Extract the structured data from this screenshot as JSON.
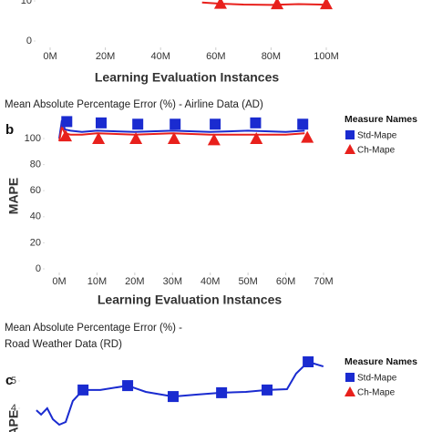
{
  "chart_data": [
    {
      "type": "line",
      "x_label": "Learning Evaluation Instances",
      "xlim": [
        0,
        100
      ],
      "xticks": [
        {
          "value": 0,
          "label": "0M"
        },
        {
          "value": 20,
          "label": "20M"
        },
        {
          "value": 40,
          "label": "40M"
        },
        {
          "value": 60,
          "label": "60M"
        },
        {
          "value": 80,
          "label": "80M"
        },
        {
          "value": 100,
          "label": "100M"
        }
      ],
      "ylim": [
        0,
        10
      ],
      "yticks": [
        0,
        10
      ],
      "series": [
        {
          "color": "#e8201c",
          "marker": "triangle",
          "x": [
            55,
            62,
            70,
            80,
            90,
            98,
            100
          ],
          "values": [
            9.6,
            9.3,
            9.1,
            9.0,
            9.2,
            9.1,
            9.0
          ],
          "marker_x": [
            61.7,
            82.2,
            100
          ],
          "marker_values": [
            9.4,
            9.3,
            9.3
          ]
        }
      ]
    },
    {
      "type": "line",
      "title": [
        "Mean Absolute Percentage Error (%)  - Airline Data (AD)"
      ],
      "panel": "b",
      "x_label": "Learning Evaluation Instances",
      "y_label": "MAPE",
      "legend_title": "Measure Names",
      "xlim": [
        0,
        70
      ],
      "xticks": [
        {
          "value": 0,
          "label": "0M"
        },
        {
          "value": 10,
          "label": "10M"
        },
        {
          "value": 20,
          "label": "20M"
        },
        {
          "value": 30,
          "label": "30M"
        },
        {
          "value": 40,
          "label": "40M"
        },
        {
          "value": 50,
          "label": "50M"
        },
        {
          "value": 60,
          "label": "60M"
        },
        {
          "value": 70,
          "label": "70M"
        }
      ],
      "ylim": [
        0,
        120
      ],
      "yticks": [
        0,
        20,
        40,
        60,
        80,
        100
      ],
      "series": [
        {
          "name": "Std-Mape",
          "color": "#1a2bd0",
          "marker": "square",
          "x": [
            0,
            0.7,
            1.5,
            3,
            6,
            10,
            20,
            30,
            40,
            50,
            60,
            65
          ],
          "values": [
            100,
            114,
            107,
            106,
            105,
            106,
            105,
            106,
            105,
            106,
            105,
            106
          ],
          "marker_x": [
            2,
            11.1,
            20.8,
            30.7,
            41.3,
            52,
            64.5
          ],
          "marker_values": [
            113,
            112,
            111,
            111,
            111,
            112,
            111
          ]
        },
        {
          "name": "Ch-Mape",
          "color": "#e8201c",
          "marker": "triangle",
          "x": [
            0,
            0.7,
            1.5,
            3,
            6,
            10,
            20,
            30,
            40,
            50,
            60,
            65
          ],
          "values": [
            98,
            109,
            104,
            103,
            103,
            104,
            103,
            104,
            103,
            103,
            103,
            104
          ],
          "marker_x": [
            1.7,
            10.4,
            20.3,
            30.4,
            41,
            52.2,
            65.7
          ],
          "marker_values": [
            102,
            100,
            100,
            100,
            99,
            100,
            101
          ]
        }
      ]
    },
    {
      "type": "line",
      "title": [
        "Mean Absolute Percentage Error (%) -",
        "Road Weather Data (RD)"
      ],
      "panel": "c",
      "y_label": "MAPE",
      "legend_title": "Measure Names",
      "xlim": [
        0,
        100
      ],
      "ylim": [
        3,
        6
      ],
      "yticks": [
        4,
        5
      ],
      "series": [
        {
          "name": "Std-Mape",
          "color": "#1a2bd0",
          "marker": "square",
          "x": [
            0.6,
            2.2,
            4.3,
            6.2,
            8.4,
            10.6,
            13.0,
            16.5,
            22.4,
            31.7,
            37.9,
            47.2,
            55.0,
            63.7,
            72.0,
            79.2,
            86.0,
            89.1,
            93.2,
            98.4
          ],
          "values": [
            3.93,
            3.77,
            4.0,
            3.6,
            3.4,
            3.5,
            4.27,
            4.67,
            4.67,
            4.83,
            4.6,
            4.43,
            4.5,
            4.57,
            4.6,
            4.67,
            4.7,
            5.27,
            5.7,
            5.53
          ],
          "marker_x": [
            16.5,
            31.7,
            47.2,
            63.7,
            79.2,
            93.2
          ],
          "marker_values": [
            4.67,
            4.83,
            4.43,
            4.57,
            4.67,
            5.7
          ]
        },
        {
          "name": "Ch-Mape",
          "color": "#e8201c",
          "marker": "triangle",
          "x": [],
          "values": [],
          "marker_x": [],
          "marker_values": []
        }
      ]
    }
  ]
}
